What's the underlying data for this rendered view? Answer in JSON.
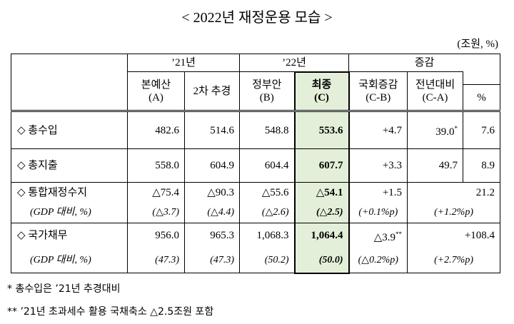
{
  "title": "< 2022년 재정운용 모습 >",
  "unit": "(조원, %)",
  "header": {
    "groups": [
      "’21년",
      "’22년",
      "증감"
    ],
    "columns": [
      {
        "name": "본예산",
        "code": "(A)"
      },
      {
        "name": "2차 추경"
      },
      {
        "name": "정부안",
        "code": "(B)"
      },
      {
        "name": "최종",
        "code": "(C)"
      },
      {
        "name": "국회증감",
        "code": "(C-B)"
      },
      {
        "name": "전년대비",
        "code": "(C-A)"
      },
      {
        "name": "%"
      }
    ]
  },
  "rows": [
    {
      "label": "◇ 총수입",
      "values": [
        "482.6",
        "514.6",
        "548.8",
        "553.6",
        "+4.7",
        "39.0",
        "7.6"
      ],
      "value_notes": {
        "5": "*"
      }
    },
    {
      "label": "◇ 총지출",
      "values": [
        "558.0",
        "604.9",
        "604.4",
        "607.7",
        "+3.3",
        "49.7",
        "8.9"
      ]
    },
    {
      "label": "◇ 통합재정수지",
      "values": [
        "△75.4",
        "△90.3",
        "△55.6",
        "△54.1",
        "+1.5",
        "21.2"
      ],
      "sub": {
        "label": "(GDP 대비, %)",
        "values": [
          "(△3.7)",
          "(△4.4)",
          "(△2.6)",
          "(△2.5)",
          "(+0.1%p)",
          "(+1.2%p)"
        ]
      }
    },
    {
      "label": "◇ 국가채무",
      "values": [
        "956.0",
        "965.3",
        "1,068.3",
        "1,064.4",
        "△3.9",
        "+108.4"
      ],
      "value_notes": {
        "4": "**"
      },
      "sub": {
        "label": "(GDP 대비, %)",
        "values": [
          "(47.3)",
          "(47.3)",
          "(50.2)",
          "(50.0)",
          "(△0.2%p)",
          "(+2.7%p)"
        ]
      }
    }
  ],
  "footnotes": [
    "* 총수입은 ’21년 추경대비",
    "** ’21년 초과세수 활용 국채축소 △2.5조원 포함"
  ]
}
